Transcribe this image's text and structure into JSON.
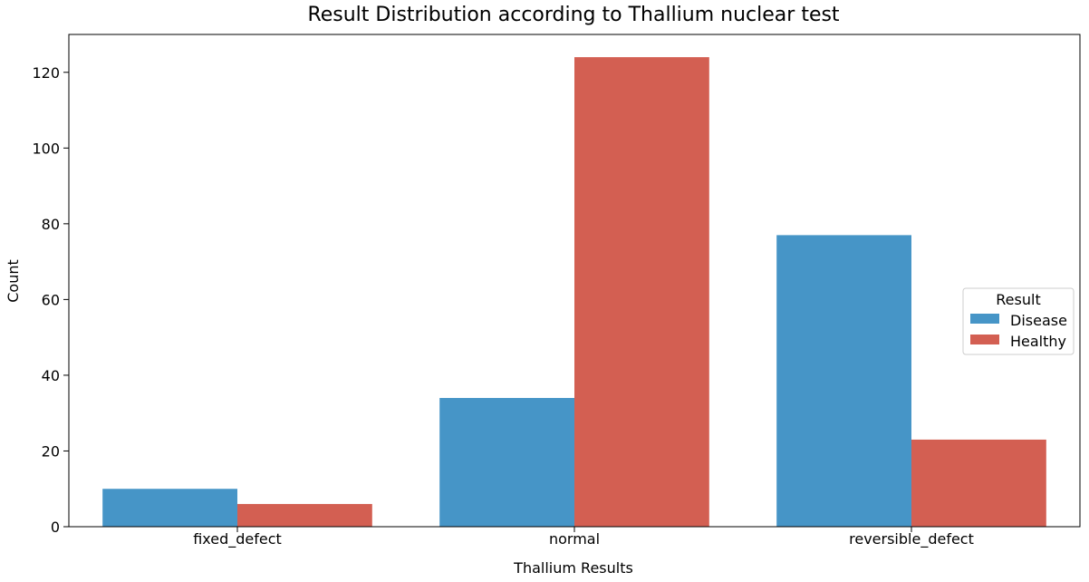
{
  "chart_data": {
    "type": "bar",
    "title": "Result Distribution according to Thallium nuclear test",
    "xlabel": "Thallium Results",
    "ylabel": "Count",
    "categories": [
      "fixed_defect",
      "normal",
      "reversible_defect"
    ],
    "series": [
      {
        "name": "Disease",
        "values": [
          10,
          34,
          77
        ],
        "color": "#4695c7"
      },
      {
        "name": "Healthy",
        "values": [
          6,
          124,
          23
        ],
        "color": "#d35f52"
      }
    ],
    "ylim": [
      0,
      130
    ],
    "yticks": [
      0,
      20,
      40,
      60,
      80,
      100,
      120
    ],
    "grid": false,
    "legend": {
      "title": "Result",
      "placement": "center-right"
    }
  }
}
